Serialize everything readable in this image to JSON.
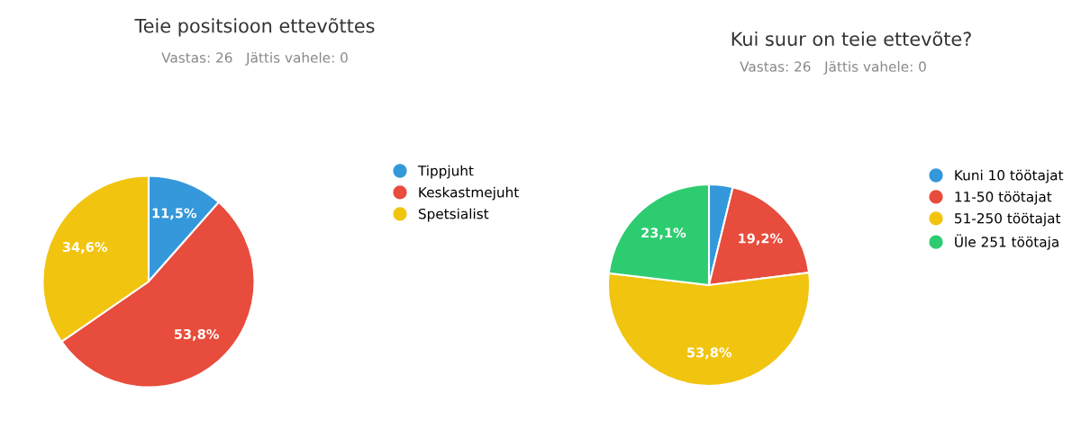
{
  "chart_data": [
    {
      "type": "pie",
      "title": "Teie positsioon ettevõttes",
      "subtitle": "Vastas: 26   Jättis vahele: 0",
      "categories": [
        "Tippjuht",
        "Keskastmejuht",
        "Spetsialist"
      ],
      "values": [
        11.5,
        53.8,
        34.6
      ],
      "colors": [
        "#3498db",
        "#e74c3c",
        "#f1c40f"
      ],
      "value_labels": [
        "11,5%",
        "53,8%",
        "34,6%"
      ],
      "legend": "right"
    },
    {
      "type": "pie",
      "title": "Kui suur on teie ettevõte?",
      "subtitle": "Vastas: 26   Jättis vahele: 0",
      "categories": [
        "Kuni 10 töötajat",
        "11-50 töötajat",
        "51-250 töötajat",
        "Üle 251 töötaja"
      ],
      "values": [
        3.8,
        19.2,
        53.8,
        23.1
      ],
      "colors": [
        "#3498db",
        "#e74c3c",
        "#f1c40f",
        "#2ecc71"
      ],
      "value_labels": [
        null,
        "19,2%",
        "53,8%",
        "23,1%"
      ],
      "legend": "right"
    }
  ]
}
